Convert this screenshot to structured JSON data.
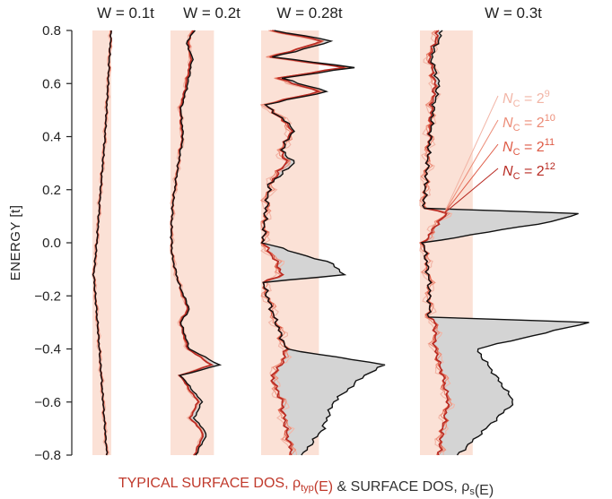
{
  "chart_data": {
    "type": "line",
    "ylabel": "ENERGY [t]",
    "ylim": [
      -0.8,
      0.8
    ],
    "yticks": [
      "0.8",
      "0.6",
      "0.4",
      "0.2",
      "0.0",
      "-0.2",
      "-0.4",
      "-0.6",
      "-0.8"
    ],
    "xlabel_parts": [
      {
        "text": "TYPICAL SURFACE DOS, ρ",
        "color": "#c0392b"
      },
      {
        "text": "typ",
        "color": "#c0392b",
        "sub": true
      },
      {
        "text": "(E)",
        "color": "#c0392b"
      },
      {
        "text": " & SURFACE DOS, ρ",
        "color": "#333333"
      },
      {
        "text": "s",
        "color": "#333333",
        "sub": true
      },
      {
        "text": "(E)",
        "color": "#333333"
      }
    ],
    "legend": {
      "title_prefix": "N",
      "title_sub": "C",
      "entries": [
        {
          "base": "2",
          "exp": "9",
          "color": "#f2b5a6"
        },
        {
          "base": "2",
          "exp": "10",
          "color": "#ec8c77"
        },
        {
          "base": "2",
          "exp": "11",
          "color": "#de5a45"
        },
        {
          "base": "2",
          "exp": "12",
          "color": "#b82a22"
        }
      ]
    },
    "colors": {
      "typ_fill": "#fbe1d6",
      "surface_fill": "#d4d4d4",
      "surface_line": "#111111",
      "typ_lines": [
        "#f2b5a6",
        "#ec8c77",
        "#de5a45",
        "#b82a22"
      ]
    },
    "panels": [
      {
        "title": "W = 0.1t",
        "segments": [],
        "samples": [
          {
            "E": 0.8,
            "typ": 0.3,
            "s": 0.3
          },
          {
            "E": 0.7,
            "typ": 0.27,
            "s": 0.27
          },
          {
            "E": 0.6,
            "typ": 0.25,
            "s": 0.25
          },
          {
            "E": 0.4,
            "typ": 0.2,
            "s": 0.2
          },
          {
            "E": 0.2,
            "typ": 0.13,
            "s": 0.13
          },
          {
            "E": 0.0,
            "typ": 0.07,
            "s": 0.07
          },
          {
            "E": -0.12,
            "typ": 0.02,
            "s": 0.02
          },
          {
            "E": -0.3,
            "typ": 0.08,
            "s": 0.08
          },
          {
            "E": -0.5,
            "typ": 0.14,
            "s": 0.14
          },
          {
            "E": -0.7,
            "typ": 0.2,
            "s": 0.2
          },
          {
            "E": -0.8,
            "typ": 0.23,
            "s": 0.23
          }
        ]
      },
      {
        "title": "W = 0.2t",
        "segments": [],
        "samples": [
          {
            "E": 0.8,
            "typ": 0.28,
            "s": 0.3
          },
          {
            "E": 0.75,
            "typ": 0.22,
            "s": 0.2
          },
          {
            "E": 0.7,
            "typ": 0.26,
            "s": 0.28
          },
          {
            "E": 0.6,
            "typ": 0.2,
            "s": 0.22
          },
          {
            "E": 0.5,
            "typ": 0.12,
            "s": 0.13
          },
          {
            "E": 0.4,
            "typ": 0.15,
            "s": 0.16
          },
          {
            "E": 0.3,
            "typ": 0.1,
            "s": 0.1
          },
          {
            "E": 0.15,
            "typ": 0.03,
            "s": 0.03
          },
          {
            "E": 0.05,
            "typ": 0.01,
            "s": 0.01
          },
          {
            "E": -0.05,
            "typ": 0.02,
            "s": 0.02
          },
          {
            "E": -0.15,
            "typ": 0.1,
            "s": 0.1
          },
          {
            "E": -0.25,
            "typ": 0.22,
            "s": 0.24
          },
          {
            "E": -0.3,
            "typ": 0.12,
            "s": 0.13
          },
          {
            "E": -0.4,
            "typ": 0.22,
            "s": 0.24
          },
          {
            "E": -0.46,
            "typ": 0.52,
            "s": 0.62
          },
          {
            "E": -0.5,
            "typ": 0.12,
            "s": 0.13
          },
          {
            "E": -0.6,
            "typ": 0.35,
            "s": 0.4
          },
          {
            "E": -0.66,
            "typ": 0.25,
            "s": 0.3
          },
          {
            "E": -0.72,
            "typ": 0.42,
            "s": 0.46
          },
          {
            "E": -0.8,
            "typ": 0.3,
            "s": 0.32
          }
        ]
      },
      {
        "title": "W = 0.28t",
        "segments": [],
        "samples": [
          {
            "E": 0.8,
            "typ": 0.05,
            "s": 0.06
          },
          {
            "E": 0.76,
            "typ": 0.3,
            "s": 0.35
          },
          {
            "E": 0.7,
            "typ": 0.05,
            "s": 0.06
          },
          {
            "E": 0.66,
            "typ": 0.4,
            "s": 0.45
          },
          {
            "E": 0.62,
            "typ": 0.08,
            "s": 0.1
          },
          {
            "E": 0.57,
            "typ": 0.28,
            "s": 0.32
          },
          {
            "E": 0.52,
            "typ": 0.02,
            "s": 0.02
          },
          {
            "E": 0.43,
            "typ": 0.15,
            "s": 0.16
          },
          {
            "E": 0.35,
            "typ": 0.1,
            "s": 0.1
          },
          {
            "E": 0.3,
            "typ": 0.12,
            "s": 0.16
          },
          {
            "E": 0.22,
            "typ": 0.04,
            "s": 0.04
          },
          {
            "E": 0.1,
            "typ": 0.02,
            "s": 0.02
          },
          {
            "E": 0.0,
            "typ": 0.01,
            "s": 0.01
          },
          {
            "E": -0.08,
            "typ": 0.08,
            "s": 0.35
          },
          {
            "E": -0.12,
            "typ": 0.1,
            "s": 0.4
          },
          {
            "E": -0.15,
            "typ": 0.01,
            "s": 0.01
          },
          {
            "E": -0.25,
            "typ": 0.05,
            "s": 0.05
          },
          {
            "E": -0.4,
            "typ": 0.12,
            "s": 0.12
          },
          {
            "E": -0.46,
            "typ": 0.1,
            "s": 0.6
          },
          {
            "E": -0.5,
            "typ": 0.05,
            "s": 0.5
          },
          {
            "E": -0.6,
            "typ": 0.1,
            "s": 0.35
          },
          {
            "E": -0.7,
            "typ": 0.12,
            "s": 0.3
          },
          {
            "E": -0.8,
            "typ": 0.15,
            "s": 0.2
          }
        ]
      },
      {
        "title": "W = 0.3t",
        "segments": [],
        "samples": [
          {
            "E": 0.8,
            "typ": 0.1,
            "s": 0.12
          },
          {
            "E": 0.7,
            "typ": 0.05,
            "s": 0.06
          },
          {
            "E": 0.6,
            "typ": 0.08,
            "s": 0.1
          },
          {
            "E": 0.5,
            "typ": 0.06,
            "s": 0.07
          },
          {
            "E": 0.3,
            "typ": 0.04,
            "s": 0.04
          },
          {
            "E": 0.13,
            "typ": 0.02,
            "s": 0.02
          },
          {
            "E": 0.11,
            "typ": 0.15,
            "s": 0.85
          },
          {
            "E": 0.08,
            "typ": 0.1,
            "s": 0.7
          },
          {
            "E": 0.0,
            "typ": 0.02,
            "s": 0.02
          },
          {
            "E": -0.15,
            "typ": 0.05,
            "s": 0.05
          },
          {
            "E": -0.28,
            "typ": 0.05,
            "s": 0.05
          },
          {
            "E": -0.3,
            "typ": 0.08,
            "s": 0.9
          },
          {
            "E": -0.4,
            "typ": 0.08,
            "s": 0.3
          },
          {
            "E": -0.5,
            "typ": 0.12,
            "s": 0.4
          },
          {
            "E": -0.6,
            "typ": 0.15,
            "s": 0.5
          },
          {
            "E": -0.7,
            "typ": 0.12,
            "s": 0.35
          },
          {
            "E": -0.8,
            "typ": 0.1,
            "s": 0.2
          }
        ]
      }
    ]
  }
}
